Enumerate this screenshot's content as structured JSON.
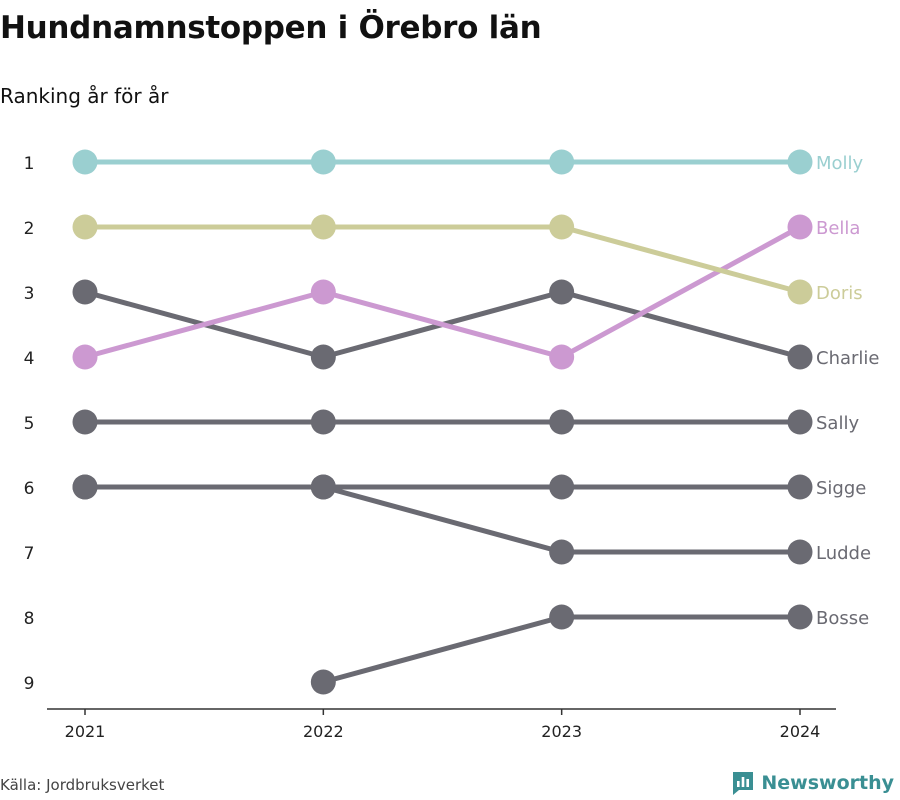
{
  "title": "Hundnamnstoppen i Örebro län",
  "subtitle": "Ranking år för år",
  "source": "Källa: Jordbruksverket",
  "brand": "Newsworthy",
  "chart_data": {
    "type": "line",
    "subtype": "bump",
    "x": [
      "2021",
      "2022",
      "2023",
      "2024"
    ],
    "y_ticks": [
      1,
      2,
      3,
      4,
      5,
      6,
      7,
      8,
      9
    ],
    "y_reversed": true,
    "ylim": [
      1,
      9
    ],
    "grid": false,
    "series": [
      {
        "name": "Molly",
        "color": "#9acfd0",
        "values": [
          1,
          1,
          1,
          1
        ]
      },
      {
        "name": "Bella",
        "color": "#cc99d1",
        "values": [
          4,
          3,
          4,
          2
        ]
      },
      {
        "name": "Doris",
        "color": "#cccc99",
        "values": [
          2,
          2,
          2,
          3
        ]
      },
      {
        "name": "Charlie",
        "color": "#6a6a72",
        "values": [
          3,
          4,
          3,
          4
        ]
      },
      {
        "name": "Sally",
        "color": "#6a6a72",
        "values": [
          5,
          5,
          5,
          5
        ]
      },
      {
        "name": "Sigge",
        "color": "#6a6a72",
        "values": [
          6,
          6,
          6,
          6
        ]
      },
      {
        "name": "Ludde",
        "color": "#6a6a72",
        "values": [
          6,
          6,
          7,
          7
        ]
      },
      {
        "name": "Bosse",
        "color": "#6a6a72",
        "values": [
          null,
          9,
          8,
          8
        ]
      }
    ]
  }
}
